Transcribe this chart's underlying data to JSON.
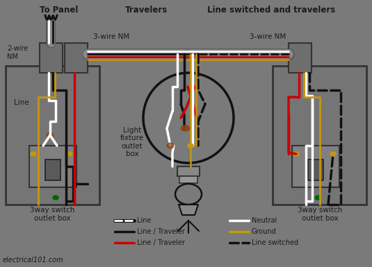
{
  "bg_color": "#7a7a7a",
  "fig_width": 5.35,
  "fig_height": 3.85,
  "dpi": 100,
  "text_color": "#1a1a1a",
  "white": "#ffffff",
  "black": "#111111",
  "red": "#cc0000",
  "gold": "#c8960a",
  "green": "#006600",
  "box_fc": "#737373",
  "box_ec": "#444444",
  "labels": {
    "to_panel": "To Panel",
    "travelers": "Travelers",
    "line_switched_travelers": "Line switched and travelers",
    "wire_nm_2": "2-wire\nNM",
    "wire_nm_3a": "3-wire NM",
    "wire_nm_3b": "3-wire NM",
    "line_label": "Line",
    "sw_box_left": "3way switch\noutlet box",
    "sw_box_right": "3way switch\noutlet box",
    "light_fixture": "Light\nfixture\noutlet\nbox",
    "website": "electrical101.com",
    "legend_line": "Line",
    "legend_black": "Line / Traveler",
    "legend_red": "Line / Traveler",
    "legend_neutral": "Neutral",
    "legend_ground": "Ground",
    "legend_switched": "Line switched"
  }
}
